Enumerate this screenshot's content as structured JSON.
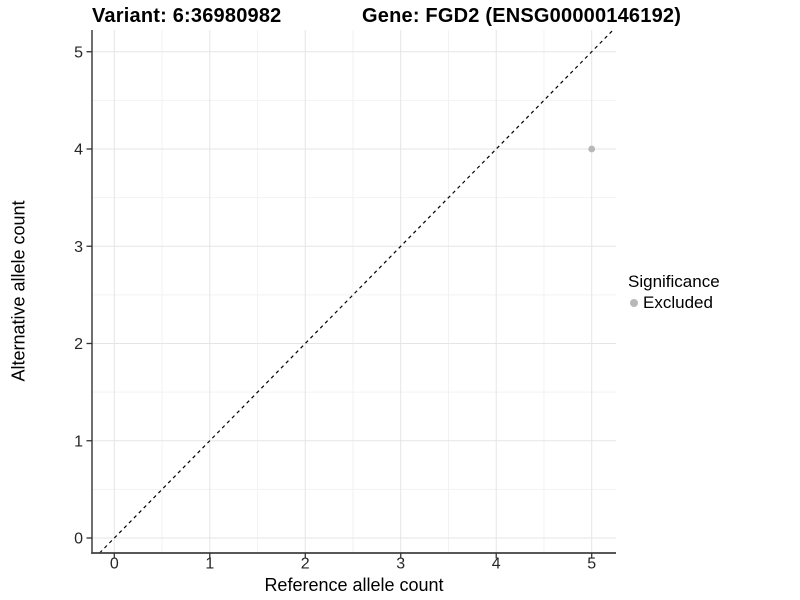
{
  "titles": {
    "variant": "Variant: 6:36980982",
    "gene": "Gene: FGD2 (ENSG00000146192)"
  },
  "chart_data": {
    "type": "scatter",
    "title": "Variant: 6:36980982   Gene: FGD2 (ENSG00000146192)",
    "xlabel": "Reference allele count",
    "ylabel": "Alternative allele count",
    "xlim": [
      -0.25,
      5.25
    ],
    "ylim": [
      -0.25,
      5.25
    ],
    "xticks": [
      0,
      1,
      2,
      3,
      4,
      5
    ],
    "yticks": [
      0,
      1,
      2,
      3,
      4,
      5
    ],
    "grid": true,
    "grid_minor_step": 0.5,
    "series": [
      {
        "name": "Excluded",
        "color": "#b8b8b8",
        "points": [
          {
            "x": 5,
            "y": 4
          }
        ]
      }
    ],
    "reference_line": {
      "type": "identity",
      "style": "dashed",
      "color": "#000000"
    },
    "legend": {
      "title": "Significance",
      "position": "right",
      "entries": [
        {
          "label": "Excluded",
          "color": "#b8b8b8"
        }
      ]
    },
    "colors": {
      "grid_major": "#e5e5e5",
      "grid_minor": "#f2f2f2",
      "axis_line": "#404040",
      "tick_mark": "#333333",
      "tick_label": "#262626",
      "background": "#ffffff"
    }
  }
}
